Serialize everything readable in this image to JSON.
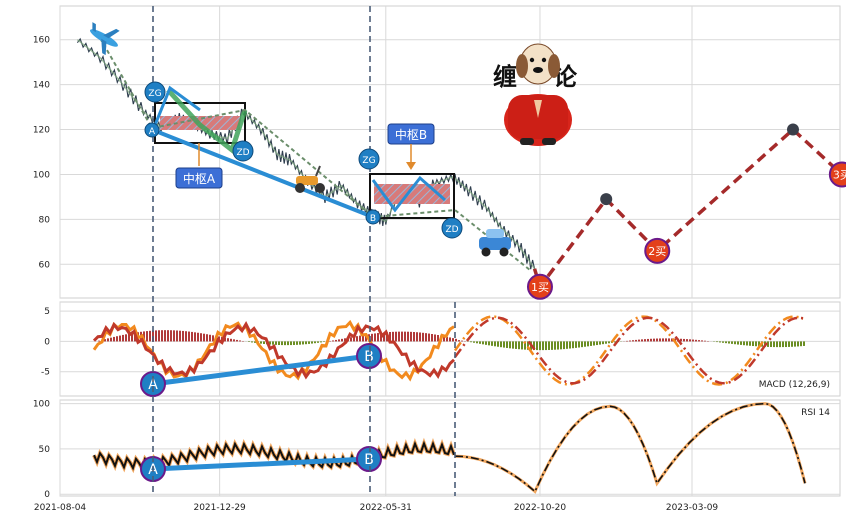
{
  "x_axis": {
    "ticks": [
      "2021-08-04",
      "2021-12-29",
      "2022-05-31",
      "2022-10-20",
      "2023-03-09"
    ]
  },
  "annotations": {
    "zhongshu_a": "中枢A",
    "zhongshu_b": "中枢B",
    "zg": "ZG",
    "zd": "ZD",
    "a": "A",
    "b": "B",
    "buy1": "1买",
    "buy2": "2买",
    "buy3": "3买",
    "logo_left": "缠",
    "logo_right": "论"
  },
  "colors": {
    "grid": "#d9d9d9",
    "price": "#2f3e4e",
    "forecast": "#a52a2a",
    "pen_blue": "#2a8dd4",
    "macd_fast": "#f28a1e",
    "macd_slow": "#c0392b",
    "hist_pos": "#b03a3a",
    "hist_neg": "#6b8e23"
  },
  "chart_data": [
    {
      "type": "line",
      "panel": "price",
      "ylim": [
        45,
        175
      ],
      "yticks": [
        60,
        80,
        100,
        120,
        140,
        160
      ],
      "series": [
        {
          "x": [
            "2021-08-20",
            "2021-09-10",
            "2021-10-01",
            "2021-10-20",
            "2021-11-05",
            "2021-11-20",
            "2021-12-05",
            "2021-12-20",
            "2022-01-05",
            "2022-01-20",
            "2022-02-05",
            "2022-02-20",
            "2022-03-05",
            "2022-03-20",
            "2022-04-05",
            "2022-04-20",
            "2022-05-05",
            "2022-05-20",
            "2022-05-31",
            "2022-06-15",
            "2022-07-01",
            "2022-07-15",
            "2022-08-01",
            "2022-08-15",
            "2022-09-01",
            "2022-09-15",
            "2022-10-01",
            "2022-10-15"
          ],
          "values": [
            160,
            152,
            140,
            128,
            121,
            125,
            122,
            118,
            116,
            128,
            120,
            109,
            106,
            97,
            90,
            95,
            87,
            82,
            79,
            94,
            88,
            96,
            99,
            93,
            85,
            76,
            68,
            58
          ]
        }
      ],
      "forecast_points": [
        {
          "x": "2022-10-20",
          "y": 50,
          "label": "1买"
        },
        {
          "x": "2022-12-20",
          "y": 89,
          "label": ""
        },
        {
          "x": "2023-02-05",
          "y": 66,
          "label": "2买"
        },
        {
          "x": "2023-06-10",
          "y": 120,
          "label": ""
        },
        {
          "x": "2023-07-25",
          "y": 100,
          "label": "3买"
        }
      ]
    },
    {
      "type": "line",
      "panel": "macd",
      "title": "MACD (12,26,9)",
      "ylim": [
        -9,
        6.5
      ],
      "yticks": [
        5,
        0,
        -5
      ]
    },
    {
      "type": "line",
      "panel": "rsi",
      "title": "RSI 14",
      "ylim": [
        -2,
        104
      ],
      "yticks": [
        100,
        50,
        0
      ]
    }
  ]
}
